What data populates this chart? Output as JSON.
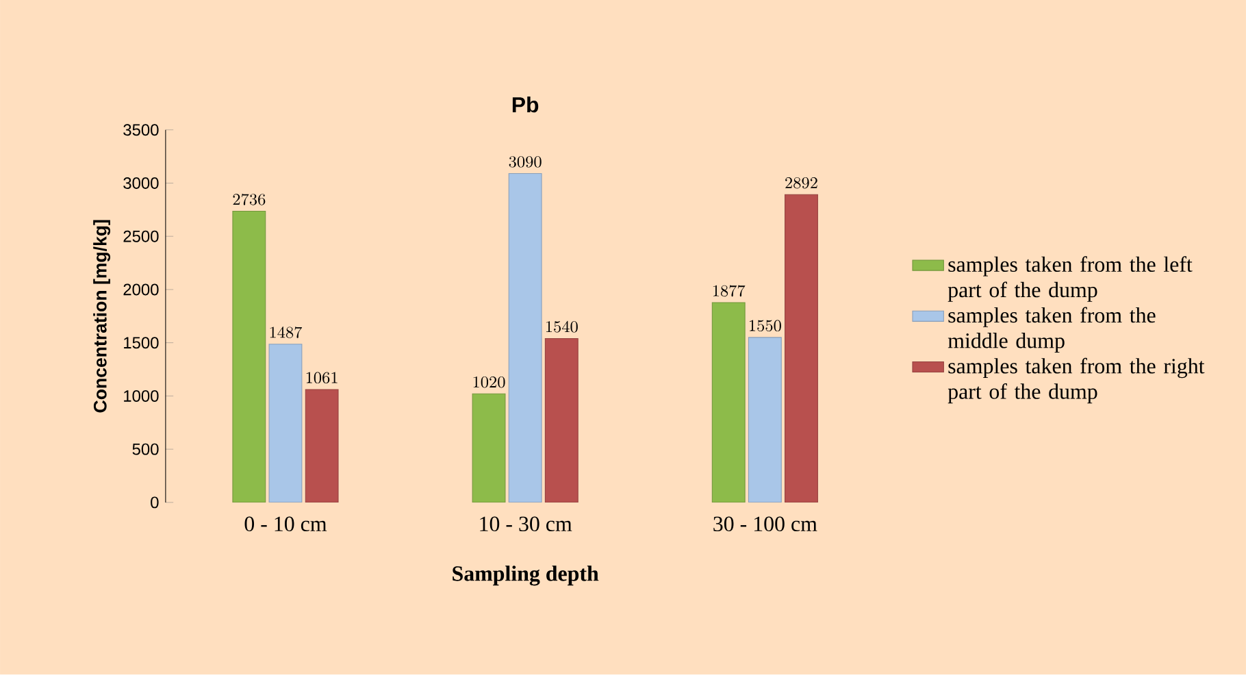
{
  "chart_data": {
    "type": "bar",
    "title": "Pb",
    "xlabel": "Sampling depth",
    "ylabel": "Concentration [mg/kg]",
    "categories": [
      "0 - 10 cm",
      "10 - 30 cm",
      "30 - 100 cm"
    ],
    "series": [
      {
        "name": "samples taken from the left part of the dump",
        "color": "#8dbb4a",
        "values": [
          2736,
          1020,
          1877
        ]
      },
      {
        "name": "samples taken from the middle dump",
        "color": "#a9c6e8",
        "values": [
          1487,
          3090,
          1550
        ]
      },
      {
        "name": "samples taken from the right part of the dump",
        "color": "#b8504e",
        "values": [
          1061,
          1540,
          2892
        ]
      }
    ],
    "ylim": [
      0,
      3500
    ],
    "yticks": [
      0,
      500,
      1000,
      1500,
      2000,
      2500,
      3000,
      3500
    ],
    "data_labels": true,
    "grid": false,
    "legend": "right"
  }
}
